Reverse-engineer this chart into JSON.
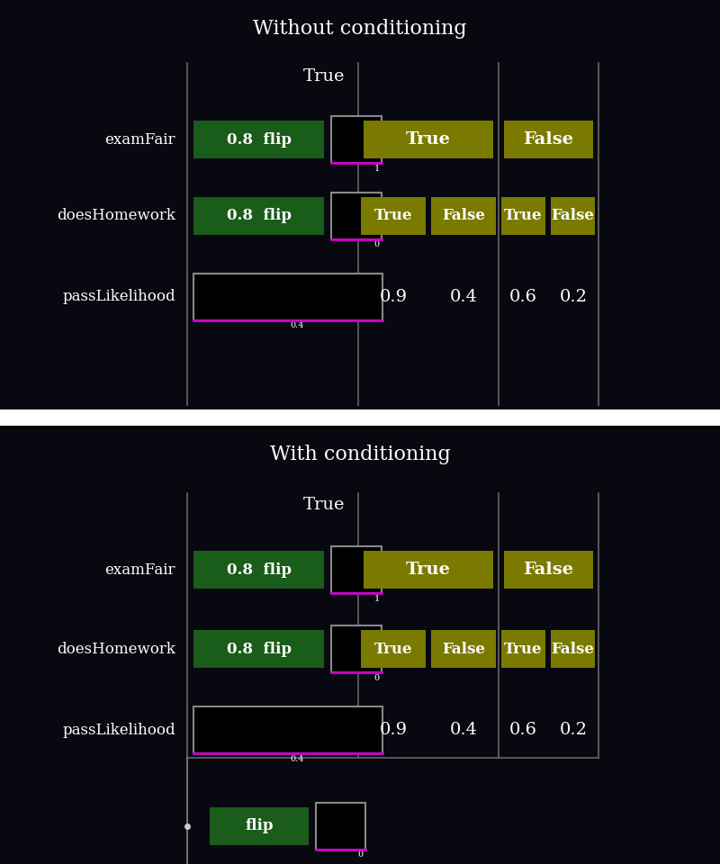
{
  "bg_color": "#080810",
  "dark_green": "#1a5c1a",
  "olive": "#7a7a00",
  "white": "#ffffff",
  "magenta": "#cc00cc",
  "gray_line": "#666666",
  "gray_box": "#888888",
  "title1": "Without conditioning",
  "title2": "With conditioning",
  "true_label": "True",
  "false_label": "False",
  "prob_values": [
    "0.9",
    "0.4",
    "0.6",
    "0.2"
  ],
  "dot_color": "#cccccc",
  "separator_color": "#dddddd"
}
